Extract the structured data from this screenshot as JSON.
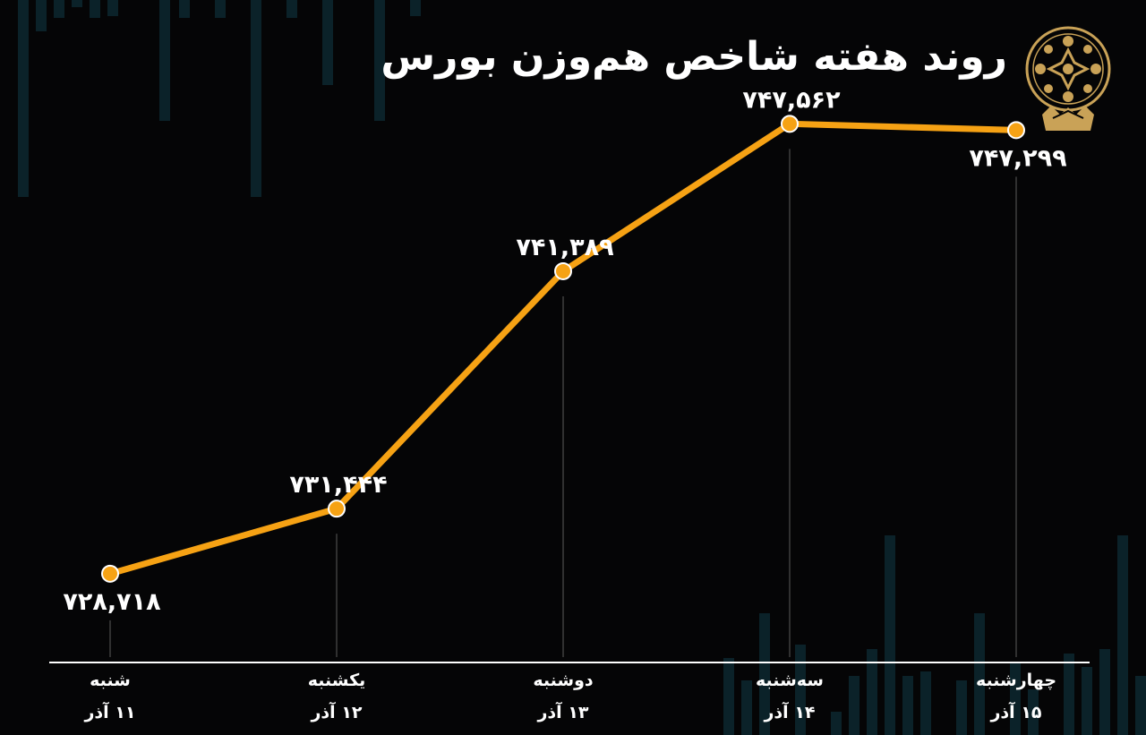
{
  "title": "روند هفته شاخص هم‌وزن بورس",
  "logo_icon": "stock-exchange-emblem-icon",
  "colors": {
    "background": "#050506",
    "line": "#f6a214",
    "marker": "#f6a214",
    "marker_stroke": "#ffffff",
    "text": "#ffffff",
    "gold": "#c9a257",
    "decor_bars": "#0b2229"
  },
  "chart_data": {
    "type": "line",
    "title": "روند هفته شاخص هم‌وزن بورس",
    "categories": [
      "شنبه",
      "یکشنبه",
      "دوشنبه",
      "سه‌شنبه",
      "چهارشنبه"
    ],
    "dates": [
      "۱۱ آذر",
      "۱۲ آذر",
      "۱۳ آذر",
      "۱۴ آذر",
      "۱۵ آذر"
    ],
    "values": [
      728718,
      731444,
      741389,
      747562,
      747299
    ],
    "data_labels": [
      "۷۲۸,۷۱۸",
      "۷۳۱,۴۴۴",
      "۷۴۱,۳۸۹",
      "۷۴۷,۵۶۲",
      "۷۴۷,۲۹۹"
    ],
    "label_positions": [
      "below",
      "above",
      "above",
      "above",
      "below"
    ],
    "ylim": [
      725000,
      750500
    ],
    "grid": false,
    "legend": "none"
  }
}
